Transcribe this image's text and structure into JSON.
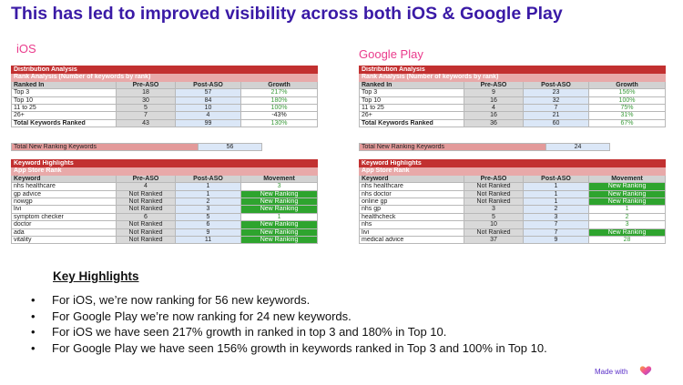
{
  "title": "This has led to improved visibility across both iOS & Google Play",
  "ios": {
    "label": "iOS",
    "dist": {
      "header1": "Distribution Analysis",
      "header2": "Rank Analysis (Number of keywords by rank)",
      "cols": [
        "Ranked In",
        "Pre-ASO",
        "Post-ASO",
        "Growth"
      ],
      "rows": [
        [
          "Top 3",
          "18",
          "57",
          "217%"
        ],
        [
          "Top 10",
          "30",
          "84",
          "180%"
        ],
        [
          "11 to 25",
          "5",
          "10",
          "100%"
        ],
        [
          "26+",
          "7",
          "4",
          "-43%"
        ],
        [
          "Total Keywords Ranked",
          "43",
          "99",
          "130%"
        ]
      ],
      "total_label": "Total New Ranking Keywords",
      "total_value": "56"
    },
    "kw": {
      "header1": "Keyword Highlights",
      "header2": "App Store Rank",
      "cols": [
        "Keyword",
        "Pre-ASO",
        "Post-ASO",
        "Movement"
      ],
      "rows": [
        [
          "nhs healthcare",
          "4",
          "1",
          "3"
        ],
        [
          "gp advice",
          "Not Ranked",
          "1",
          "New Ranking"
        ],
        [
          "nowgp",
          "Not Ranked",
          "2",
          "New Ranking"
        ],
        [
          "livi",
          "Not Ranked",
          "3",
          "New Ranking"
        ],
        [
          "symptom checker",
          "6",
          "5",
          "1"
        ],
        [
          "doctor",
          "Not Ranked",
          "6",
          "New Ranking"
        ],
        [
          "ada",
          "Not Ranked",
          "9",
          "New Ranking"
        ],
        [
          "vitality",
          "Not Ranked",
          "11",
          "New Ranking"
        ]
      ]
    }
  },
  "gp": {
    "label": "Google Play",
    "dist": {
      "header1": "Distribution Analysis",
      "header2": "Rank Analysis (Number of keywords by rank)",
      "cols": [
        "Ranked In",
        "Pre-ASO",
        "Post-ASO",
        "Growth"
      ],
      "rows": [
        [
          "Top 3",
          "9",
          "23",
          "156%"
        ],
        [
          "Top 10",
          "16",
          "32",
          "100%"
        ],
        [
          "11 to 25",
          "4",
          "7",
          "75%"
        ],
        [
          "26+",
          "16",
          "21",
          "31%"
        ],
        [
          "Total Keywords Ranked",
          "36",
          "60",
          "67%"
        ]
      ],
      "total_label": "Total New Ranking Keywords",
      "total_value": "24"
    },
    "kw": {
      "header1": "Keyword Highlights",
      "header2": "App Store Rank",
      "cols": [
        "Keyword",
        "Pre-ASO",
        "Post-ASO",
        "Movement"
      ],
      "rows": [
        [
          "nhs healthcare",
          "Not Ranked",
          "1",
          "New Ranking"
        ],
        [
          "nhs doctor",
          "Not Ranked",
          "1",
          "New Ranking"
        ],
        [
          "online gp",
          "Not Ranked",
          "1",
          "New Ranking"
        ],
        [
          "nhs gp",
          "3",
          "2",
          "1"
        ],
        [
          "healthcheck",
          "5",
          "3",
          "2"
        ],
        [
          "nhs",
          "10",
          "7",
          "3"
        ],
        [
          "livi",
          "Not Ranked",
          "7",
          "New Ranking"
        ],
        [
          "medical advice",
          "37",
          "9",
          "28"
        ]
      ]
    }
  },
  "highlights": {
    "title": "Key Highlights",
    "bullet": "•",
    "items": [
      "For iOS, we’re now ranking for 56 new keywords.",
      "For Google Play we’re now ranking for 24 new keywords.",
      "For iOS we have seen 217% growth in ranked in top 3 and 180% in Top 10.",
      "For Google Play we have seen 156% growth in keywords ranked in Top 3  and 100% in Top 10."
    ]
  },
  "made_with": "Made with",
  "colors": {
    "title": "#3a1aa6",
    "section": "#ea3b8c",
    "header": "#c23030",
    "new_ranking": "#2ea42e",
    "growth": "#3a9a3a"
  },
  "icons": {
    "heart": "heart-icon"
  }
}
